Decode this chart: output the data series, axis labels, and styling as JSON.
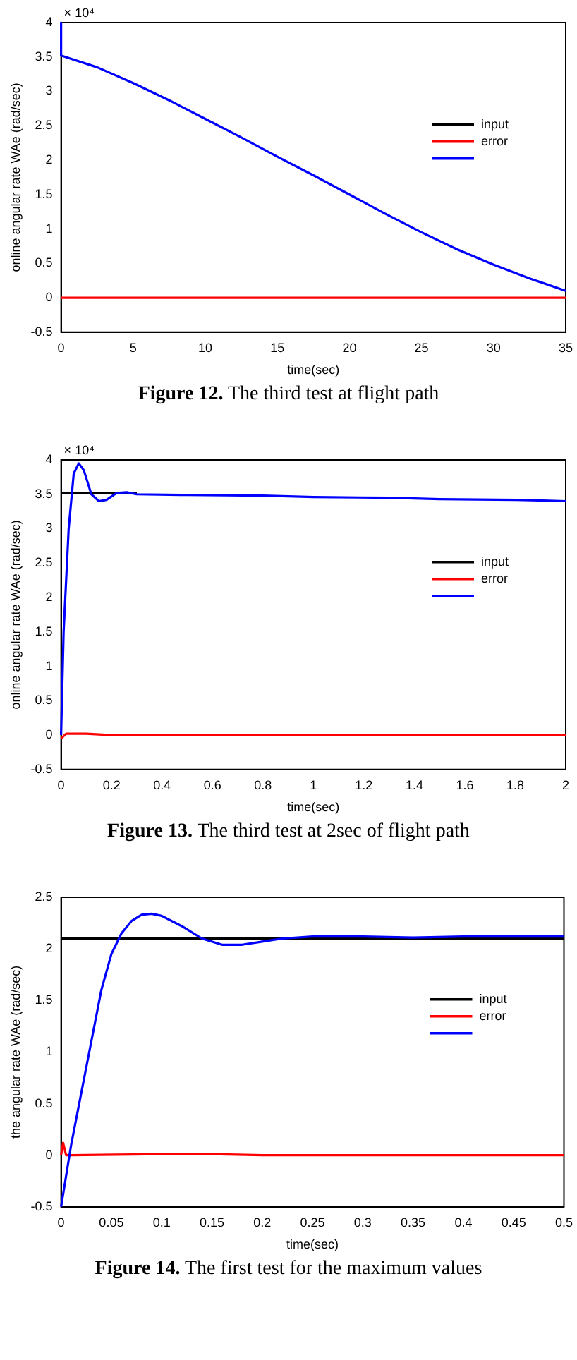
{
  "chart_data": [
    {
      "type": "line",
      "title": "Figure 12. The third test at flight path",
      "xlabel": "time(sec)",
      "ylabel": "online angular rate WAe (rad/sec)",
      "annotations": [
        "× 10⁴"
      ],
      "xlim": [
        0,
        35
      ],
      "xticks": [
        0,
        5,
        10,
        15,
        20,
        25,
        30,
        35
      ],
      "ylim": [
        -0.5,
        4
      ],
      "yticks": [
        -0.5,
        0,
        0.5,
        1,
        1.5,
        2,
        2.5,
        3,
        3.5,
        4
      ],
      "legend": "right",
      "grid": false,
      "series": [
        {
          "name": "input",
          "color": "#000000"
        },
        {
          "name": "error",
          "color": "#ff0000",
          "x": [
            0,
            35
          ],
          "values": [
            0,
            0
          ]
        },
        {
          "color": "#0000ff",
          "x": [
            0,
            0,
            2.5,
            5,
            7.5,
            10,
            12.5,
            15,
            17.5,
            20,
            22.5,
            25,
            27.5,
            30,
            32.5,
            35
          ],
          "values": [
            4,
            3.52,
            3.35,
            3.12,
            2.87,
            2.6,
            2.33,
            2.05,
            1.78,
            1.5,
            1.22,
            0.95,
            0.7,
            0.48,
            0.28,
            0.1
          ]
        }
      ]
    },
    {
      "type": "line",
      "title": "Figure 13. The third test at 2sec of flight path",
      "xlabel": "time(sec)",
      "ylabel": "online angular rate WAe (rad/sec)",
      "annotations": [
        "× 10⁴"
      ],
      "xlim": [
        0,
        2
      ],
      "xticks": [
        0,
        0.2,
        0.4,
        0.6,
        0.8,
        1,
        1.2,
        1.4,
        1.6,
        1.8,
        2
      ],
      "ylim": [
        -0.5,
        4
      ],
      "yticks": [
        -0.5,
        0,
        0.5,
        1,
        1.5,
        2,
        2.5,
        3,
        3.5,
        4
      ],
      "legend": "right",
      "grid": false,
      "series": [
        {
          "name": "input",
          "color": "#000000",
          "x": [
            0,
            0.1,
            0.2,
            0.3
          ],
          "values": [
            3.52,
            3.52,
            3.52,
            3.52
          ]
        },
        {
          "name": "error",
          "color": "#ff0000",
          "x": [
            0,
            0.02,
            0.1,
            0.2,
            0.5,
            1,
            1.5,
            2
          ],
          "values": [
            -0.05,
            0.02,
            0.02,
            0,
            0,
            0,
            0,
            0
          ]
        },
        {
          "color": "#0000ff",
          "x": [
            0,
            0.01,
            0.03,
            0.05,
            0.07,
            0.09,
            0.12,
            0.15,
            0.18,
            0.22,
            0.26,
            0.3,
            0.5,
            0.8,
            1,
            1.3,
            1.5,
            1.8,
            2
          ],
          "values": [
            0,
            1.5,
            3.0,
            3.8,
            3.95,
            3.85,
            3.5,
            3.4,
            3.42,
            3.52,
            3.53,
            3.5,
            3.49,
            3.48,
            3.46,
            3.45,
            3.43,
            3.42,
            3.4
          ]
        }
      ]
    },
    {
      "type": "line",
      "title": "Figure 14. The first test for the maximum values",
      "xlabel": "time(sec)",
      "ylabel": "the angular rate WAe (rad/sec)",
      "xlim": [
        0,
        0.5
      ],
      "xticks": [
        0,
        0.05,
        0.1,
        0.15,
        0.2,
        0.25,
        0.3,
        0.35,
        0.4,
        0.45,
        0.5
      ],
      "ylim": [
        -0.5,
        2.5
      ],
      "yticks": [
        -0.5,
        0,
        0.5,
        1,
        1.5,
        2,
        2.5
      ],
      "legend": "right",
      "grid": false,
      "series": [
        {
          "name": "input",
          "color": "#000000",
          "x": [
            0,
            0.5
          ],
          "values": [
            2.1,
            2.1
          ]
        },
        {
          "name": "error",
          "color": "#ff0000",
          "x": [
            0,
            0.002,
            0.005,
            0.01,
            0.1,
            0.15,
            0.2,
            0.3,
            0.5
          ],
          "values": [
            0,
            0.12,
            0,
            0,
            0.01,
            0.01,
            0,
            0,
            0
          ]
        },
        {
          "color": "#0000ff",
          "x": [
            0,
            0.01,
            0.02,
            0.03,
            0.04,
            0.05,
            0.06,
            0.07,
            0.08,
            0.09,
            0.1,
            0.12,
            0.14,
            0.16,
            0.18,
            0.2,
            0.22,
            0.25,
            0.3,
            0.35,
            0.4,
            0.5
          ],
          "values": [
            -0.5,
            0.1,
            0.6,
            1.1,
            1.6,
            1.95,
            2.15,
            2.27,
            2.33,
            2.34,
            2.32,
            2.22,
            2.1,
            2.04,
            2.04,
            2.07,
            2.1,
            2.12,
            2.12,
            2.11,
            2.12,
            2.12
          ]
        }
      ]
    }
  ]
}
